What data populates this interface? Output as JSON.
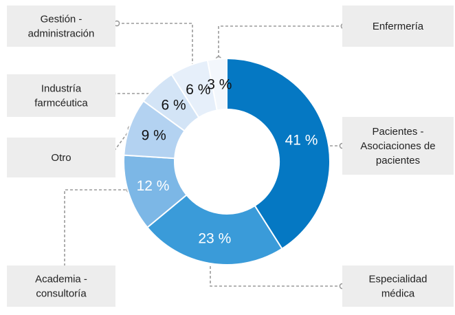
{
  "chart_data": {
    "type": "pie",
    "variant": "donut",
    "title": "",
    "unit": "%",
    "slices": [
      {
        "label": "Pacientes - Asociaciones de pacientes",
        "lines": [
          "Pacientes -",
          "Asociaciones de",
          "pacientes"
        ],
        "value": 41,
        "display": "41 %",
        "color": "#0578c3",
        "text_color": "#ffffff"
      },
      {
        "label": "Especialidad médica",
        "lines": [
          "Especialidad",
          "médica"
        ],
        "value": 23,
        "display": "23 %",
        "color": "#3a9bd9",
        "text_color": "#ffffff"
      },
      {
        "label": "Academia - consultoría",
        "lines": [
          "Academia -",
          "consultoría"
        ],
        "value": 12,
        "display": "12 %",
        "color": "#7cb7e6",
        "text_color": "#ffffff"
      },
      {
        "label": "Otro",
        "lines": [
          "Otro"
        ],
        "value": 9,
        "display": "9 %",
        "color": "#b3d2f1",
        "text_color": "#111111"
      },
      {
        "label": "Industría farmcéutica",
        "lines": [
          "Industría",
          "farmcéutica"
        ],
        "value": 6,
        "display": "6 %",
        "color": "#d3e4f6",
        "text_color": "#111111"
      },
      {
        "label": "Gestión - administración",
        "lines": [
          "Gestión -",
          "administración"
        ],
        "value": 6,
        "display": "6 %",
        "color": "#e6effa",
        "text_color": "#111111"
      },
      {
        "label": "Enfermería",
        "lines": [
          "Enfermería"
        ],
        "value": 3,
        "display": "3 %",
        "color": "#f3f7fc",
        "text_color": "#111111"
      }
    ]
  }
}
